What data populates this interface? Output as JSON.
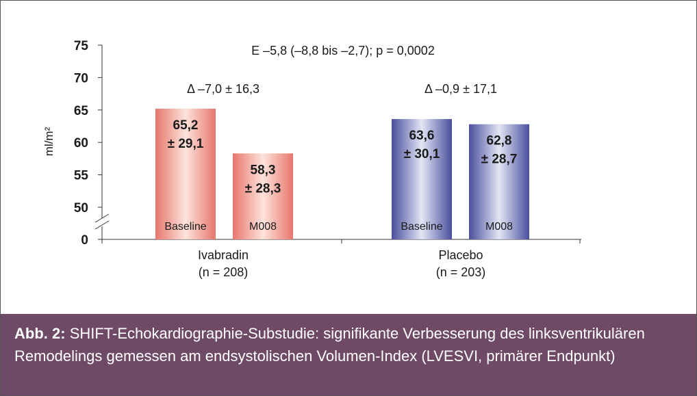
{
  "chart_data": {
    "type": "bar",
    "ylabel": "ml/m²",
    "ylim": [
      45,
      75
    ],
    "yticks": [
      "0",
      "50",
      "55",
      "60",
      "65",
      "70",
      "75"
    ],
    "axis_break": true,
    "annotation_top": "E –5,8 (–8,8 bis –2,7); p = 0,0002",
    "groups": [
      {
        "name_line1": "Ivabradin",
        "name_line2": "(n = 208)",
        "delta": "Δ –7,0 ± 16,3",
        "bars": [
          {
            "category": "Baseline",
            "value": 65.2,
            "label_line1": "65,2",
            "label_line2": "± 29,1"
          },
          {
            "category": "M008",
            "value": 58.3,
            "label_line1": "58,3",
            "label_line2": "± 28,3"
          }
        ]
      },
      {
        "name_line1": "Placebo",
        "name_line2": "(n = 203)",
        "delta": "Δ –0,9 ± 17,1",
        "bars": [
          {
            "category": "Baseline",
            "value": 63.6,
            "label_line1": "63,6",
            "label_line2": "± 30,1"
          },
          {
            "category": "M008",
            "value": 62.8,
            "label_line1": "62,8",
            "label_line2": "± 28,7"
          }
        ]
      }
    ],
    "colors": {
      "ivabradin": "#e8867a",
      "placebo": "#4c52a0"
    }
  },
  "caption": {
    "lead": "Abb. 2:",
    "text": "SHIFT-Echokardiographie-Substudie: signifikante Verbesserung des linksventrikulären Remodelings gemessen am endsystolischen Volumen-Index (LVESVI, primärer Endpunkt)"
  }
}
